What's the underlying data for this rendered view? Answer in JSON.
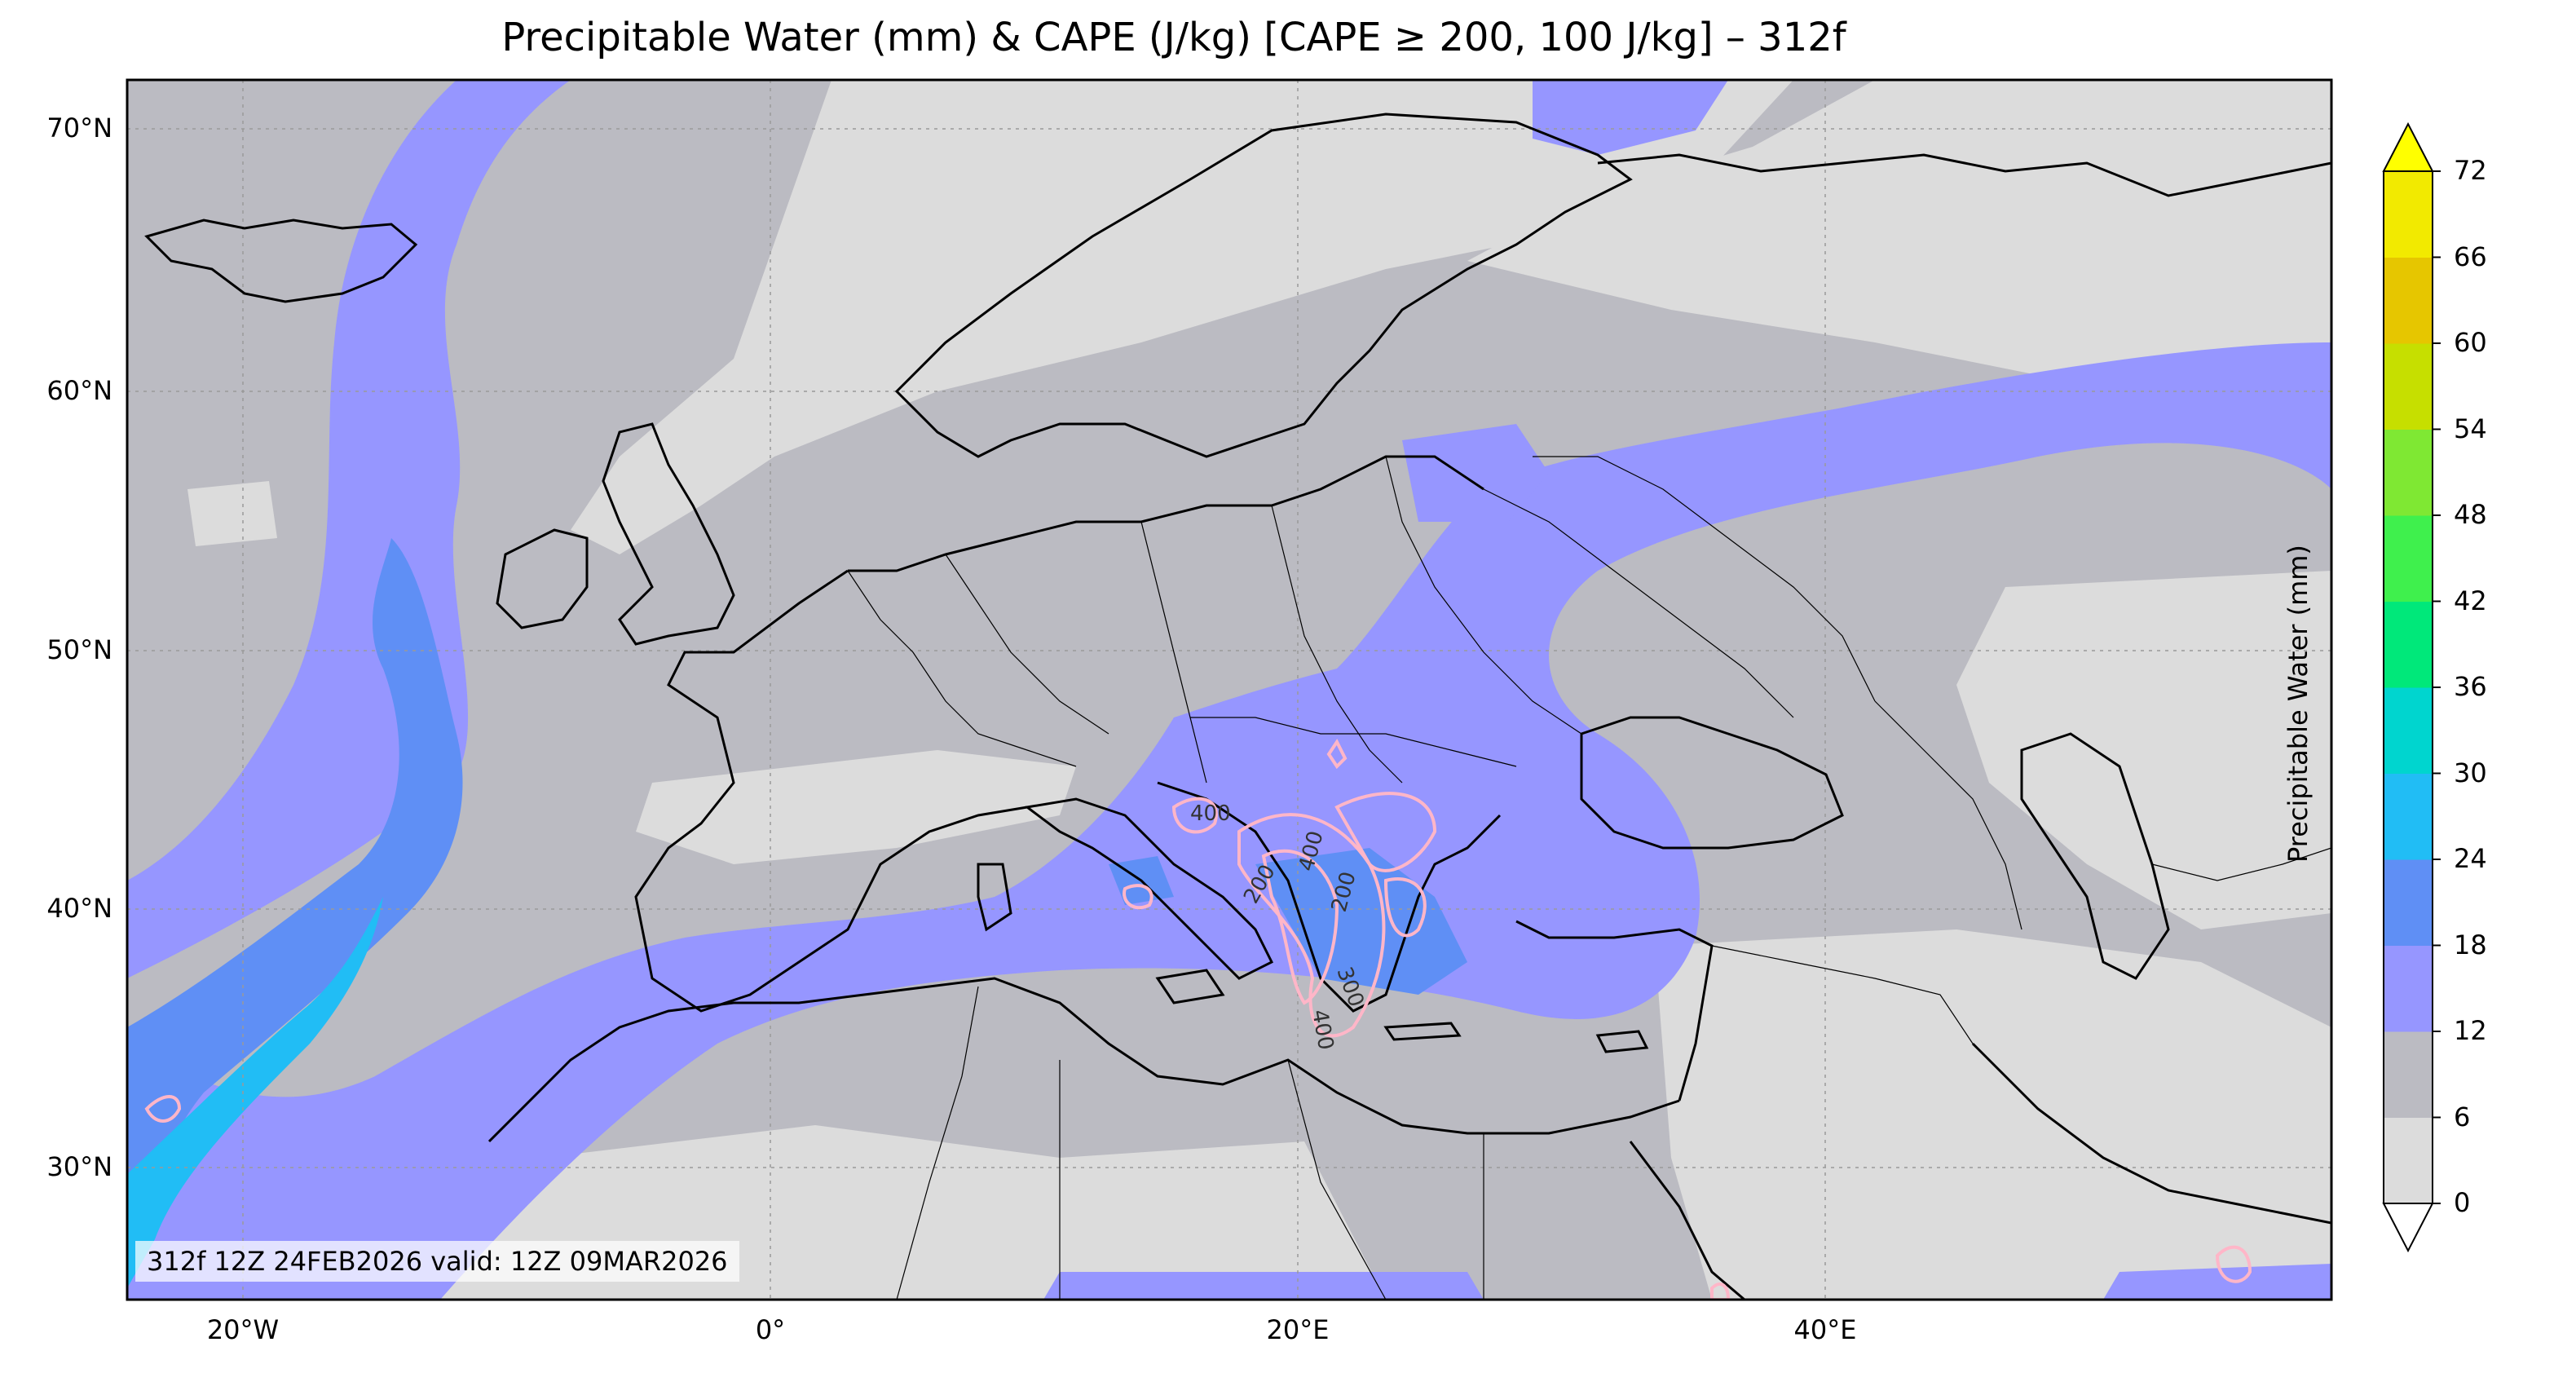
{
  "title": "Precipitable Water (mm) & CAPE (J/kg) [CAPE ≥ 200, 100 J/kg] – 312f",
  "info": "312f 12Z 24FEB2026 valid: 12Z 09MAR2026",
  "colorbar": {
    "label": "Precipitable Water (mm)",
    "ticks": [
      "0",
      "6",
      "12",
      "18",
      "24",
      "30",
      "36",
      "42",
      "48",
      "54",
      "60",
      "66",
      "72"
    ],
    "colors": [
      "#dcdcdc",
      "#bbbbc2",
      "#9696ff",
      "#5f8ff5",
      "#21bdf5",
      "#00d5cf",
      "#00e87a",
      "#3ff04d",
      "#7fe833",
      "#c6df00",
      "#e6c600",
      "#f2ea00"
    ],
    "extend_low_color": "#ffffff",
    "extend_high_color": "#ffff00"
  },
  "map": {
    "lat_labels": [
      "70°N",
      "60°N",
      "50°N",
      "40°N",
      "30°N"
    ],
    "lon_labels": [
      "20°W",
      "0°",
      "20°E",
      "40°E"
    ],
    "cape_contour_color": "#ffb6c8",
    "cape_labels": [
      "400",
      "200",
      "400",
      "200",
      "300",
      "400"
    ]
  }
}
